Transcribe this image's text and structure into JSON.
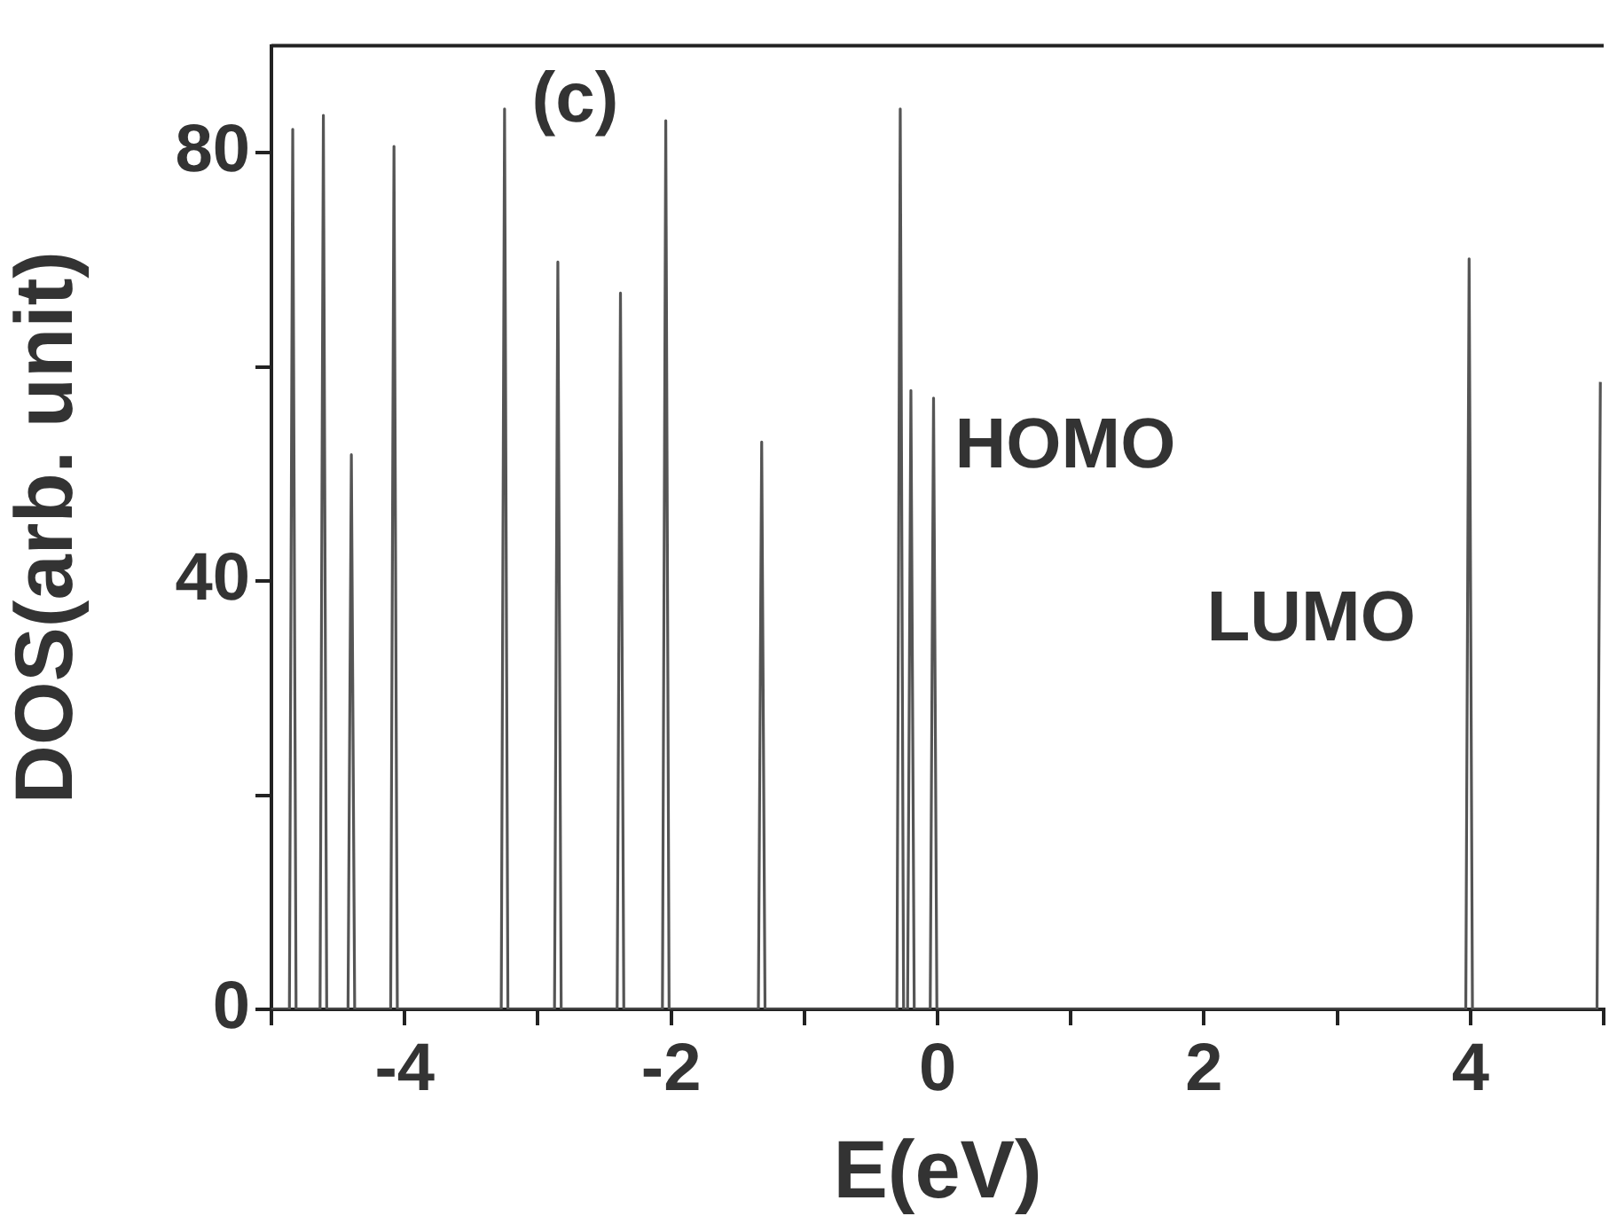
{
  "chart_data": {
    "type": "line",
    "title": "(c)",
    "xlabel": "E(eV)",
    "ylabel": "DOS(arb. unit)",
    "xlim": [
      -5,
      5
    ],
    "ylim": [
      0,
      90
    ],
    "xticks": [
      {
        "value": -5,
        "label": null
      },
      -4,
      {
        "value": -3,
        "label": null
      },
      -2,
      {
        "value": -1,
        "label": null
      },
      0,
      {
        "value": 1,
        "label": null
      },
      2,
      {
        "value": 3,
        "label": null
      },
      4,
      {
        "value": 5,
        "label": null
      }
    ],
    "yticks": [
      0,
      {
        "value": 20,
        "label": null
      },
      40,
      {
        "value": 60,
        "label": null
      },
      80
    ],
    "marker": "none",
    "annotations": [
      "HOMO",
      "LUMO"
    ],
    "series": [
      {
        "color": "#555555",
        "x": [
          -5,
          -4.865,
          -4.84,
          -4.815,
          -4.635,
          -4.61,
          -4.585,
          -4.425,
          -4.4,
          -4.375,
          -4.105,
          -4.08,
          -4.055,
          -3.275,
          -3.25,
          -3.225,
          -2.875,
          -2.85,
          -2.825,
          -2.405,
          -2.38,
          -2.355,
          -2.065,
          -2.04,
          -2.015,
          -1.345,
          -1.32,
          -1.295,
          -0.305,
          -0.28,
          -0.255,
          -0.225,
          -0.2,
          -0.175,
          -0.055,
          -0.03,
          -0.005,
          3.965,
          3.99,
          4.015,
          4.95,
          4.975
        ],
        "values": [
          0,
          0,
          82.2,
          0,
          0,
          83.5,
          0,
          0,
          51.8,
          0,
          0,
          80.6,
          0,
          0,
          84.1,
          0,
          0,
          69.8,
          0,
          0,
          66.9,
          0,
          0,
          83,
          0,
          0,
          53,
          0,
          0,
          84.1,
          0,
          0,
          57.8,
          0,
          0,
          57.1,
          0,
          0,
          70.1,
          0,
          0,
          58.6
        ]
      }
    ]
  }
}
